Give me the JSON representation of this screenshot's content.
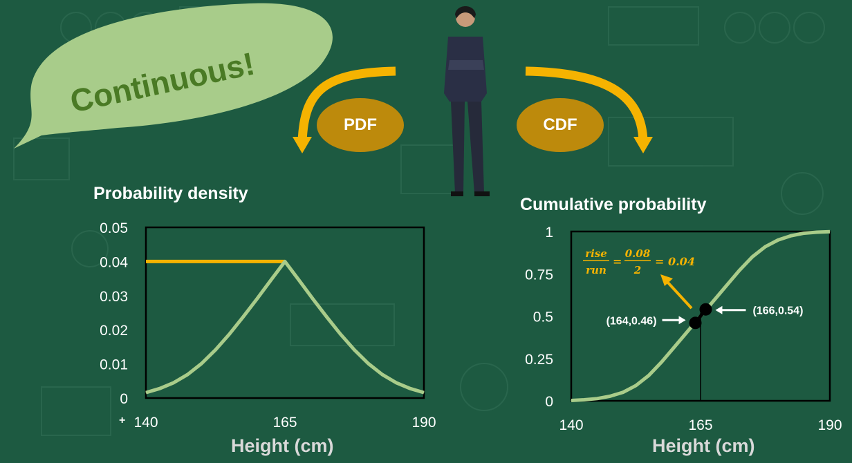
{
  "speech_bubble": {
    "text": "Continuous!"
  },
  "badges": {
    "left": "PDF",
    "right": "CDF"
  },
  "colors": {
    "background": "#1d5a41",
    "accent": "#f5b301",
    "curve": "#a9cc8a",
    "badge": "#bd8a0c",
    "bubble": "#a8cc8a"
  },
  "icons": [
    "person-figure",
    "curved-arrow-left",
    "curved-arrow-right",
    "plus-cursor"
  ],
  "chart_data": [
    {
      "type": "line",
      "title": "Probability density",
      "xlabel": "Height (cm)",
      "ylabel": "",
      "xlim": [
        140,
        190
      ],
      "ylim": [
        0,
        0.05
      ],
      "x_ticks": [
        "140",
        "165",
        "190"
      ],
      "y_ticks": [
        "0",
        "0.01",
        "0.02",
        "0.03",
        "0.04",
        "0.05"
      ],
      "x_tick_values": [
        140,
        165,
        190
      ],
      "y_tick_values": [
        0,
        0.01,
        0.02,
        0.03,
        0.04,
        0.05
      ],
      "series": [
        {
          "x": [
            140,
            142.5,
            145,
            147.5,
            150,
            152.5,
            155,
            157.5,
            160,
            162.5,
            165,
            167.5,
            170,
            172.5,
            175,
            177.5,
            180,
            182.5,
            185,
            187.5,
            190
          ],
          "y": [
            0.0016,
            0.0028,
            0.0045,
            0.0069,
            0.0101,
            0.0141,
            0.0187,
            0.0238,
            0.0291,
            0.0346,
            0.04,
            0.0346,
            0.0291,
            0.0238,
            0.0187,
            0.0141,
            0.0101,
            0.0069,
            0.0045,
            0.0028,
            0.0016
          ]
        }
      ],
      "annotations": {
        "max_line": {
          "y": 0.04,
          "x_from": 140,
          "x_to": 165
        }
      },
      "grid": false
    },
    {
      "type": "line",
      "title": "Cumulative probability",
      "xlabel": "Height (cm)",
      "ylabel": "",
      "xlim": [
        140,
        190
      ],
      "ylim": [
        0,
        1
      ],
      "x_ticks": [
        "140",
        "165",
        "190"
      ],
      "y_ticks": [
        "0",
        "0.25",
        "0.5",
        "0.75",
        "1"
      ],
      "x_tick_values": [
        140,
        165,
        190
      ],
      "y_tick_values": [
        0,
        0.25,
        0.5,
        0.75,
        1
      ],
      "series": [
        {
          "x": [
            140,
            142.5,
            145,
            147.5,
            150,
            152.5,
            155,
            157.5,
            160,
            162.5,
            165,
            167.5,
            170,
            172.5,
            175,
            177.5,
            180,
            182.5,
            185,
            187.5,
            190
          ],
          "y": [
            0.002,
            0.006,
            0.013,
            0.027,
            0.05,
            0.09,
            0.15,
            0.23,
            0.32,
            0.41,
            0.5,
            0.59,
            0.68,
            0.77,
            0.85,
            0.91,
            0.95,
            0.975,
            0.99,
            0.996,
            0.999
          ]
        }
      ],
      "points": [
        {
          "x": 164,
          "y": 0.46,
          "label": "(164,0.46)"
        },
        {
          "x": 166,
          "y": 0.54,
          "label": "(166,0.54)"
        }
      ],
      "vline_x": 165,
      "formula": {
        "rise": "rise",
        "run": "run",
        "num": "0.08",
        "den": "2",
        "eq": "=",
        "result": "= 0.04"
      },
      "grid": false
    }
  ]
}
